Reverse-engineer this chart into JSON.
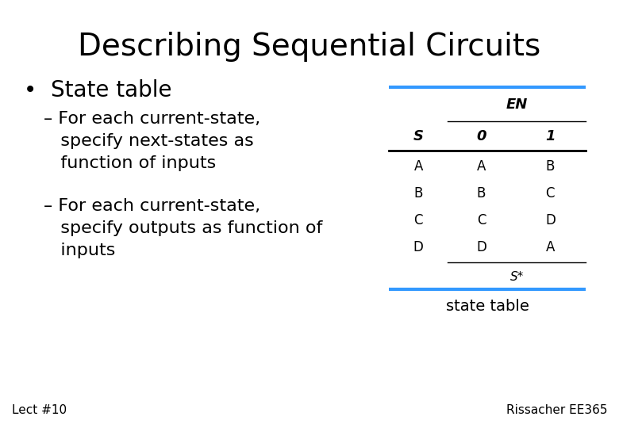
{
  "title": "Describing Sequential Circuits",
  "bullet1": "State table",
  "dash1": "– For each current-state,\n   specify next-states as\n   function of inputs",
  "dash2": "– For each current-state,\n   specify outputs as function of\n   inputs",
  "footer_left": "Lect #10",
  "footer_right": "Rissacher EE365",
  "table_caption": "state table",
  "table_header_top": "EN",
  "table_col0_header": "S",
  "table_col1_header": "0",
  "table_col2_header": "1",
  "table_rows": [
    [
      "A",
      "A",
      "B"
    ],
    [
      "B",
      "B",
      "C"
    ],
    [
      "C",
      "C",
      "D"
    ],
    [
      "D",
      "D",
      "A"
    ]
  ],
  "table_footer": "S*",
  "blue_line_color": "#3399ff",
  "bg_color": "#ffffff",
  "text_color": "#000000"
}
